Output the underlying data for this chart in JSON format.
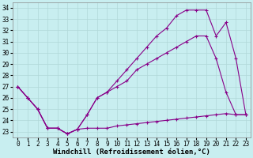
{
  "xlabel": "Windchill (Refroidissement éolien,°C)",
  "x": [
    0,
    1,
    2,
    3,
    4,
    5,
    6,
    7,
    8,
    9,
    10,
    11,
    12,
    13,
    14,
    15,
    16,
    17,
    18,
    19,
    20,
    21,
    22,
    23
  ],
  "line1": [
    27.0,
    26.0,
    25.0,
    23.3,
    23.3,
    22.8,
    23.2,
    23.3,
    23.3,
    23.3,
    23.5,
    23.6,
    23.7,
    23.8,
    23.9,
    24.0,
    24.1,
    24.2,
    24.3,
    24.4,
    24.5,
    24.6,
    24.5,
    24.5
  ],
  "line2": [
    27.0,
    26.0,
    25.0,
    23.3,
    23.3,
    22.8,
    23.2,
    24.5,
    26.0,
    26.5,
    27.0,
    27.5,
    28.5,
    29.0,
    29.5,
    30.0,
    30.5,
    31.0,
    31.5,
    31.5,
    29.5,
    26.5,
    24.5,
    24.5
  ],
  "line3": [
    27.0,
    26.0,
    25.0,
    23.3,
    23.3,
    22.8,
    23.2,
    24.5,
    26.0,
    26.5,
    27.5,
    28.5,
    29.5,
    30.5,
    31.5,
    32.2,
    33.3,
    33.8,
    33.8,
    33.8,
    31.5,
    32.7,
    29.5,
    24.5
  ],
  "line_color": "#880088",
  "bg_color": "#c8eef0",
  "grid_color": "#b0d8d8",
  "ylim": [
    22.5,
    34.5
  ],
  "yticks": [
    23,
    24,
    25,
    26,
    27,
    28,
    29,
    30,
    31,
    32,
    33,
    34
  ],
  "xticks": [
    0,
    1,
    2,
    3,
    4,
    5,
    6,
    7,
    8,
    9,
    10,
    11,
    12,
    13,
    14,
    15,
    16,
    17,
    18,
    19,
    20,
    21,
    22,
    23
  ],
  "marker": "+",
  "markersize": 3,
  "linewidth": 0.8,
  "xlabel_fontsize": 6.5,
  "tick_fontsize": 5.5
}
